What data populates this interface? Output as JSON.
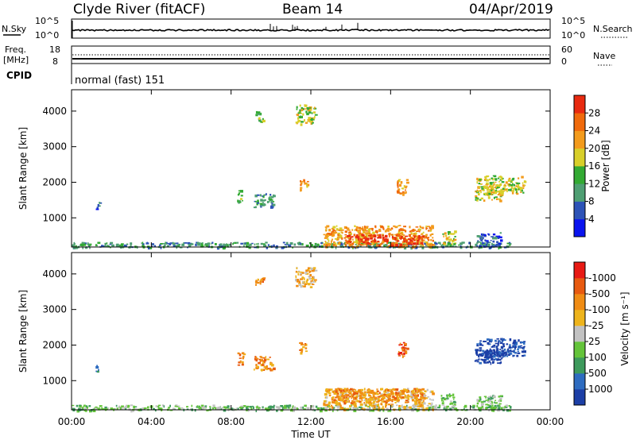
{
  "header": {
    "title": "Clyde River (fitACF)",
    "beam": "Beam 14",
    "date": "04/Apr/2019"
  },
  "noise_panel": {
    "left_label": "N.Sky",
    "right_label": "N.Search",
    "tick_top": "10^5",
    "tick_bottom": "10^0"
  },
  "freq_panel": {
    "left_label_1": "Freq.",
    "left_label_2": "[MHz]",
    "left_tick_top": "18",
    "left_tick_bottom": "8",
    "right_label": "Nave",
    "right_tick_top": "60",
    "right_tick_bottom": "0"
  },
  "cpid_panel": {
    "label": "CPID",
    "mode": "normal (fast) 151"
  },
  "power_colorbar": {
    "title": "Power [dB]",
    "colors": [
      "#0a14ef",
      "#2d53b7",
      "#4f9f73",
      "#33aa33",
      "#d8cf2a",
      "#f39b1c",
      "#f06a0c",
      "#e82a10"
    ],
    "ticks": [
      "4",
      "8",
      "12",
      "16",
      "20",
      "24",
      "28"
    ]
  },
  "velocity_colorbar": {
    "title": "Velocity [m s⁻¹]",
    "colors": [
      "#1c3fa6",
      "#2e6cc0",
      "#3d9a5c",
      "#64c43a",
      "#c2c2c2",
      "#eeb41c",
      "#f08c14",
      "#e85a10",
      "#e81a14"
    ],
    "ticks": [
      "1000",
      "500",
      "100",
      "25",
      "-25",
      "-100",
      "-500",
      "-1000"
    ]
  },
  "chart_data": [
    {
      "type": "heatmap",
      "title": "",
      "xlabel": "Time UT",
      "ylabel": "Slant Range [km]",
      "x_ticks": [
        "00:00",
        "04:00",
        "08:00",
        "12:00",
        "16:00",
        "20:00",
        "00:00"
      ],
      "xlim_hours": [
        0,
        24
      ],
      "y_ticks": [
        1000,
        2000,
        3000,
        4000
      ],
      "ylim_km": [
        180,
        4600
      ],
      "colorbar": "Power [dB]",
      "regions": [
        {
          "t": [
            0,
            22
          ],
          "r": [
            180,
            330
          ],
          "level": 2,
          "note": "near-range scatter"
        },
        {
          "t": [
            1.2,
            1.4
          ],
          "r": [
            1250,
            1450
          ],
          "level": 1
        },
        {
          "t": [
            8.3,
            8.6
          ],
          "r": [
            1450,
            1800
          ],
          "level": 3
        },
        {
          "t": [
            9.1,
            10.1
          ],
          "r": [
            1300,
            1700
          ],
          "level": 2
        },
        {
          "t": [
            9.2,
            9.6
          ],
          "r": [
            3700,
            4000
          ],
          "level": 3
        },
        {
          "t": [
            11.2,
            12.2
          ],
          "r": [
            3650,
            4200
          ],
          "level": 4
        },
        {
          "t": [
            11.4,
            11.8
          ],
          "r": [
            1800,
            2100
          ],
          "level": 5
        },
        {
          "t": [
            12.6,
            18.1
          ],
          "r": [
            200,
            800
          ],
          "level": 5
        },
        {
          "t": [
            13.8,
            17.6
          ],
          "r": [
            250,
            550
          ],
          "level": 7
        },
        {
          "t": [
            16.3,
            16.8
          ],
          "r": [
            1650,
            2100
          ],
          "level": 5
        },
        {
          "t": [
            18.5,
            19.2
          ],
          "r": [
            250,
            650
          ],
          "level": 4
        },
        {
          "t": [
            20.2,
            21.6
          ],
          "r": [
            1500,
            1900
          ],
          "level": 4
        },
        {
          "t": [
            20.3,
            22.7
          ],
          "r": [
            1700,
            2200
          ],
          "level": 4
        },
        {
          "t": [
            20.3,
            21.5
          ],
          "r": [
            200,
            600
          ],
          "level": 1
        }
      ]
    },
    {
      "type": "heatmap",
      "title": "",
      "xlabel": "Time UT",
      "ylabel": "Slant Range [km]",
      "x_ticks": [
        "00:00",
        "04:00",
        "08:00",
        "12:00",
        "16:00",
        "20:00",
        "00:00"
      ],
      "xlim_hours": [
        0,
        24
      ],
      "y_ticks": [
        1000,
        2000,
        3000,
        4000
      ],
      "ylim_km": [
        180,
        4600
      ],
      "colorbar": "Velocity [m s⁻¹]",
      "regions": [
        {
          "t": [
            0,
            22
          ],
          "r": [
            180,
            330
          ],
          "level": 3
        },
        {
          "t": [
            1.2,
            1.4
          ],
          "r": [
            1250,
            1450
          ],
          "level": 1
        },
        {
          "t": [
            8.3,
            8.6
          ],
          "r": [
            1450,
            1800
          ],
          "level": 6
        },
        {
          "t": [
            9.1,
            10.1
          ],
          "r": [
            1300,
            1700
          ],
          "level": 6
        },
        {
          "t": [
            9.2,
            9.6
          ],
          "r": [
            3700,
            4000
          ],
          "level": 6
        },
        {
          "t": [
            11.2,
            12.2
          ],
          "r": [
            3650,
            4200
          ],
          "level": 5
        },
        {
          "t": [
            11.4,
            11.8
          ],
          "r": [
            1800,
            2100
          ],
          "level": 6
        },
        {
          "t": [
            12.6,
            18.1
          ],
          "r": [
            200,
            800
          ],
          "level": 5
        },
        {
          "t": [
            13.0,
            17.6
          ],
          "r": [
            400,
            800
          ],
          "level": 6
        },
        {
          "t": [
            16.3,
            16.8
          ],
          "r": [
            1650,
            2100
          ],
          "level": 7
        },
        {
          "t": [
            18.5,
            19.2
          ],
          "r": [
            250,
            650
          ],
          "level": 3
        },
        {
          "t": [
            20.2,
            21.6
          ],
          "r": [
            1500,
            1900
          ],
          "level": 0
        },
        {
          "t": [
            20.3,
            22.7
          ],
          "r": [
            1700,
            2200
          ],
          "level": 0
        },
        {
          "t": [
            20.3,
            21.5
          ],
          "r": [
            200,
            600
          ],
          "level": 3
        }
      ]
    }
  ]
}
